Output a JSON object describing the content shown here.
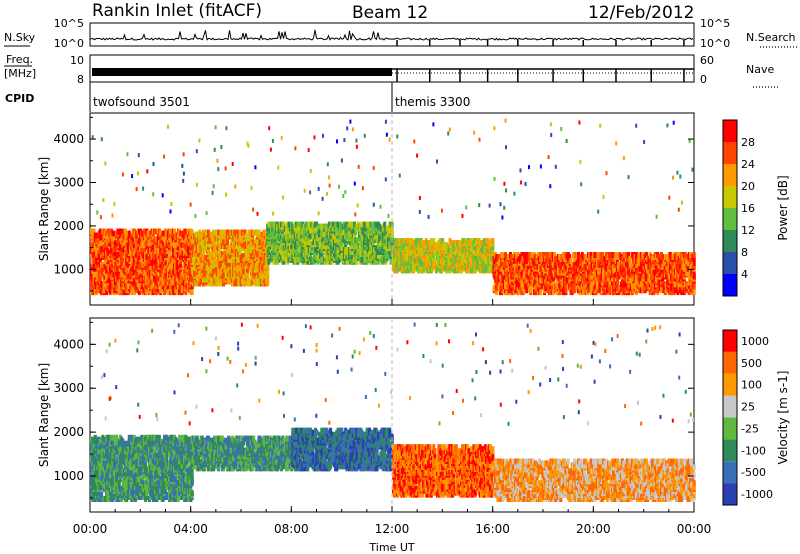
{
  "header": {
    "station": "Rankin Inlet (fitACF)",
    "beam": "Beam 12",
    "date": "12/Feb/2012"
  },
  "side_labels": {
    "nsky": "N.Sky",
    "nsearch": "N.Search",
    "freq": "Freq.",
    "mhz": "[MHz]",
    "nave": "Nave",
    "cpid": "CPID"
  },
  "chart_data": [
    {
      "type": "line",
      "name": "noise-panel",
      "y_left_ticks": [
        "10^5",
        "10^0"
      ],
      "y_right_ticks": [
        "10^5",
        "10^0"
      ],
      "search_markers_hours": [
        12.2,
        13.5,
        14.7,
        15.8,
        17.0,
        18.4,
        19.6,
        20.9,
        22.3,
        23.6
      ]
    },
    {
      "type": "line",
      "name": "freq-nave-panel",
      "y_left_ticks": [
        "10",
        "8"
      ],
      "y_right_ticks": [
        "60",
        "0"
      ],
      "nave_markers_hours": [
        12.2,
        13.5,
        14.7,
        15.8,
        17.0,
        18.4,
        19.6,
        20.9,
        22.3,
        23.6
      ]
    },
    {
      "type": "table",
      "name": "cpid",
      "segments": [
        {
          "label": "twofsound 3501",
          "start_hour": 0,
          "end_hour": 12
        },
        {
          "label": "themis 3300",
          "start_hour": 12,
          "end_hour": 24
        }
      ]
    },
    {
      "type": "heatmap",
      "name": "power",
      "ylabel": "Slant Range [km]",
      "yticks": [
        1000,
        2000,
        3000,
        4000
      ],
      "ylim": [
        180,
        4600
      ],
      "colorbar_label": "Power [dB]",
      "colorbar_ticks": [
        "28",
        "24",
        "20",
        "16",
        "12",
        "8",
        "4"
      ],
      "colors": [
        "#0000ff",
        "#2a4fa8",
        "#2e8b57",
        "#5fbf3f",
        "#c8c800",
        "#ff9900",
        "#ff4400",
        "#ff0000"
      ],
      "echo_bands": [
        {
          "h0": 0,
          "h1": 4,
          "r0": 500,
          "r1": 1900,
          "level": 6
        },
        {
          "h0": 4,
          "h1": 7,
          "r0": 700,
          "r1": 1900,
          "level": 5
        },
        {
          "h0": 7,
          "h1": 12,
          "r0": 1200,
          "r1": 2100,
          "level": 3
        },
        {
          "h0": 12,
          "h1": 16,
          "r0": 1000,
          "r1": 1700,
          "level": 4
        },
        {
          "h0": 16,
          "h1": 24,
          "r0": 500,
          "r1": 1400,
          "level": 6
        }
      ]
    },
    {
      "type": "heatmap",
      "name": "velocity",
      "ylabel": "Slant Range [km]",
      "yticks": [
        1000,
        2000,
        3000,
        4000
      ],
      "ylim": [
        180,
        4600
      ],
      "colorbar_label": "Velocity [m s-1]",
      "colorbar_ticks": [
        "1000",
        "500",
        "100",
        "25",
        "-25",
        "-100",
        "-500",
        "-1000"
      ],
      "colors": [
        "#2a3fb0",
        "#3a6fb8",
        "#2e8b57",
        "#60b840",
        "#c8c8c8",
        "#ff9900",
        "#ff6600",
        "#ff0000"
      ],
      "echo_bands": [
        {
          "h0": 0,
          "h1": 4,
          "r0": 500,
          "r1": 1900,
          "level": 2
        },
        {
          "h0": 4,
          "h1": 8,
          "r0": 1200,
          "r1": 1900,
          "level": 2
        },
        {
          "h0": 8,
          "h1": 12,
          "r0": 1200,
          "r1": 2100,
          "level": 1
        },
        {
          "h0": 12,
          "h1": 16,
          "r0": 600,
          "r1": 1700,
          "level": 6
        },
        {
          "h0": 16,
          "h1": 24,
          "r0": 500,
          "r1": 1400,
          "level": 5
        }
      ]
    }
  ],
  "xaxis": {
    "label": "Time UT",
    "ticks": [
      "00:00",
      "04:00",
      "08:00",
      "12:00",
      "16:00",
      "20:00",
      "00:00"
    ],
    "tick_hours": [
      0,
      4,
      8,
      12,
      16,
      20,
      24
    ]
  }
}
